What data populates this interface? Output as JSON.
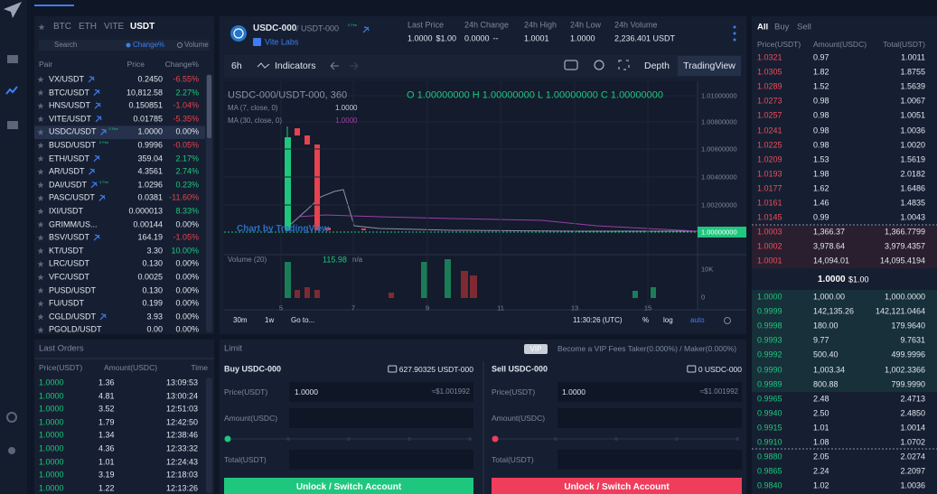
{
  "market_tabs": {
    "items": [
      "BTC",
      "ETH",
      "VITE",
      "USDT"
    ],
    "active": 3
  },
  "market_search": {
    "placeholder": "Search",
    "sort_options": [
      "Change%",
      "Volume"
    ]
  },
  "pairs_table": {
    "columns": [
      "Pair",
      "Price",
      "Change%"
    ],
    "rows": [
      {
        "pair": "VX/USDT",
        "price": "0.2450",
        "change": "-6.55%",
        "mining": true
      },
      {
        "pair": "BTC/USDT",
        "price": "10,812.58",
        "change": "2.27%",
        "mining": true
      },
      {
        "pair": "HNS/USDT",
        "price": "0.150851",
        "change": "-1.04%",
        "mining": true
      },
      {
        "pair": "VITE/USDT",
        "price": "0.01785",
        "change": "-5.35%",
        "mining": true
      },
      {
        "pair": "USDC/USDT",
        "price": "1.0000",
        "change": "0.00%",
        "mining": true,
        "badge": "0 Fee",
        "selected": true
      },
      {
        "pair": "BUSD/USDT",
        "price": "0.9996",
        "change": "-0.05%",
        "badge": "0 Fee"
      },
      {
        "pair": "ETH/USDT",
        "price": "359.04",
        "change": "2.17%",
        "mining": true
      },
      {
        "pair": "AR/USDT",
        "price": "4.3561",
        "change": "2.74%",
        "mining": true
      },
      {
        "pair": "DAI/USDT",
        "price": "1.0296",
        "change": "0.23%",
        "mining": true,
        "badge": "0 Fee"
      },
      {
        "pair": "PASC/USDT",
        "price": "0.0381",
        "change": "-11.60%",
        "mining": true
      },
      {
        "pair": "IXI/USDT",
        "price": "0.000013",
        "change": "8.33%"
      },
      {
        "pair": "GRIMM/US...",
        "price": "0.00144",
        "change": "0.00%"
      },
      {
        "pair": "BSV/USDT",
        "price": "164.19",
        "change": "-1.05%",
        "mining": true
      },
      {
        "pair": "KT/USDT",
        "price": "3.30",
        "change": "10.00%"
      },
      {
        "pair": "LRC/USDT",
        "price": "0.130",
        "change": "0.00%"
      },
      {
        "pair": "VFC/USDT",
        "price": "0.0025",
        "change": "0.00%"
      },
      {
        "pair": "PUSD/USDT",
        "price": "0.130",
        "change": "0.00%"
      },
      {
        "pair": "FU/USDT",
        "price": "0.199",
        "change": "0.00%"
      },
      {
        "pair": "CGLD/USDT",
        "price": "3.93",
        "change": "0.00%",
        "mining": true
      },
      {
        "pair": "PGOLD/USDT",
        "price": "0.00",
        "change": "0.00%"
      }
    ]
  },
  "last_orders": {
    "title": "Last Orders",
    "columns": [
      "Price(USDT)",
      "Amount(USDC)",
      "Time"
    ],
    "rows": [
      [
        "1.0000",
        "1.36",
        "13:09:53"
      ],
      [
        "1.0000",
        "4.81",
        "13:00:24"
      ],
      [
        "1.0000",
        "3.52",
        "12:51:03"
      ],
      [
        "1.0000",
        "1.79",
        "12:42:50"
      ],
      [
        "1.0000",
        "1.34",
        "12:38:46"
      ],
      [
        "1.0000",
        "4.36",
        "12:33:32"
      ],
      [
        "1.0000",
        "1.01",
        "12:24:43"
      ],
      [
        "1.0000",
        "3.19",
        "12:18:03"
      ],
      [
        "1.0000",
        "1.22",
        "12:13:26"
      ]
    ]
  },
  "pair_header": {
    "base": "USDC-000",
    "quote": "/ USDT-000",
    "badge": "0 Fee",
    "issuer": "Vite Labs",
    "stats": [
      {
        "label": "Last Price",
        "value": "1.0000",
        "sub": "$1.00"
      },
      {
        "label": "24h Change",
        "value": "0.0000",
        "sub": "--"
      },
      {
        "label": "24h High",
        "value": "1.0001"
      },
      {
        "label": "24h Low",
        "value": "1.0000"
      },
      {
        "label": "24h Volume",
        "value": "2,236.401 USDT"
      }
    ]
  },
  "chart": {
    "interval": "6h",
    "indicators": "Indicators",
    "views": [
      "Depth",
      "TradingView"
    ],
    "symbol": "USDC-000/USDT-000, 360",
    "ohlc": "O 1.00000000  H 1.00000000  L 1.00000000  C 1.00000000",
    "ma": [
      {
        "label": "MA (7, close, 0)",
        "value": "1.0000"
      },
      {
        "label": "MA (30, close, 0)",
        "value": "1.0000"
      }
    ],
    "price_axis": [
      "1.01000000",
      "1.00800000",
      "1.00600000",
      "1.00400000",
      "1.00200000"
    ],
    "last_price": "1.00000000",
    "watermark": "Chart by TradingView",
    "volume": {
      "label": "Volume (20)",
      "value": "115.98",
      "ma": "n/a",
      "axis": [
        "10K",
        "0"
      ]
    },
    "time_axis": [
      "5",
      "7",
      "9",
      "11",
      "13",
      "15"
    ],
    "bottom_bar": {
      "ranges": [
        "30m",
        "1w"
      ],
      "goto": "Go to...",
      "clock": "11:30:26 (UTC)",
      "options": [
        "%",
        "log",
        "auto"
      ]
    }
  },
  "order_form": {
    "title": "Limit",
    "vip": "VIP",
    "fees": "Become a VIP  Fees Taker(0.000%) / Maker(0.000%)",
    "buy": {
      "title": "Buy USDC-000",
      "balance": "627.90325 USDT-000",
      "price_label": "Price(USDT)",
      "price": "1.0000",
      "price_usd": "≈$1.001992",
      "amount_label": "Amount(USDC)",
      "total_label": "Total(USDT)",
      "button": "Unlock / Switch Account"
    },
    "sell": {
      "title": "Sell USDC-000",
      "balance": "0 USDC-000",
      "price_label": "Price(USDT)",
      "price": "1.0000",
      "price_usd": "≈$1.001992",
      "amount_label": "Amount(USDC)",
      "total_label": "Total(USDT)",
      "button": "Unlock / Switch Account"
    }
  },
  "order_book": {
    "tabs": [
      "All",
      "Buy",
      "Sell"
    ],
    "columns": [
      "Price(USDT)",
      "Amount(USDC)",
      "Total(USDT)"
    ],
    "asks": [
      [
        "1.0321",
        "0.97",
        "1.0011"
      ],
      [
        "1.0305",
        "1.82",
        "1.8755"
      ],
      [
        "1.0289",
        "1.52",
        "1.5639"
      ],
      [
        "1.0273",
        "0.98",
        "1.0067"
      ],
      [
        "1.0257",
        "0.98",
        "1.0051"
      ],
      [
        "1.0241",
        "0.98",
        "1.0036"
      ],
      [
        "1.0225",
        "0.98",
        "1.0020"
      ],
      [
        "1.0209",
        "1.53",
        "1.5619"
      ],
      [
        "1.0193",
        "1.98",
        "2.0182"
      ],
      [
        "1.0177",
        "1.62",
        "1.6486"
      ],
      [
        "1.0161",
        "1.46",
        "1.4835"
      ],
      [
        "1.0145",
        "0.99",
        "1.0043"
      ],
      [
        "1.0003",
        "1,366.37",
        "1,366.7799"
      ],
      [
        "1.0002",
        "3,978.64",
        "3,979.4357"
      ],
      [
        "1.0001",
        "14,094.01",
        "14,095.4194"
      ]
    ],
    "mid_price": "1.0000",
    "mid_usd": "$1.00",
    "bids": [
      [
        "1.0000",
        "1,000.00",
        "1,000.0000"
      ],
      [
        "0.9999",
        "142,135.26",
        "142,121.0464"
      ],
      [
        "0.9998",
        "180.00",
        "179.9640"
      ],
      [
        "0.9993",
        "9.77",
        "9.7631"
      ],
      [
        "0.9992",
        "500.40",
        "499.9996"
      ],
      [
        "0.9990",
        "1,003.34",
        "1,002.3366"
      ],
      [
        "0.9989",
        "800.88",
        "799.9990"
      ],
      [
        "0.9965",
        "2.48",
        "2.4713"
      ],
      [
        "0.9940",
        "2.50",
        "2.4850"
      ],
      [
        "0.9915",
        "1.01",
        "1.0014"
      ],
      [
        "0.9910",
        "1.08",
        "1.0702"
      ],
      [
        "0.9880",
        "2.05",
        "2.0274"
      ],
      [
        "0.9865",
        "2.24",
        "2.2097"
      ],
      [
        "0.9840",
        "1.02",
        "1.0036"
      ]
    ]
  }
}
